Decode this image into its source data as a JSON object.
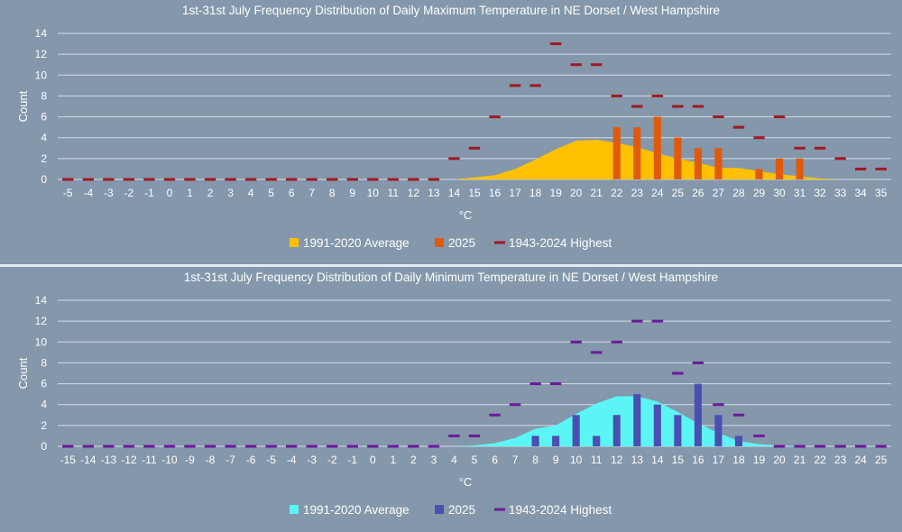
{
  "chart_data": [
    {
      "type": "bar",
      "title": "1st-31st July  Frequency Distribution of Daily Maximum Temperature in NE Dorset / West Hampshire",
      "xlabel": "°C",
      "ylabel": "Count",
      "ylim": [
        0,
        14
      ],
      "yticks": [
        0,
        2,
        4,
        6,
        8,
        10,
        12,
        14
      ],
      "grid": true,
      "legend_position": "bottom",
      "categories": [
        "-5",
        "-4",
        "-3",
        "-2",
        "-1",
        "0",
        "1",
        "2",
        "3",
        "4",
        "5",
        "6",
        "7",
        "8",
        "9",
        "10",
        "11",
        "12",
        "13",
        "14",
        "15",
        "16",
        "17",
        "18",
        "19",
        "20",
        "21",
        "22",
        "23",
        "24",
        "25",
        "26",
        "27",
        "28",
        "29",
        "30",
        "31",
        "32",
        "33",
        "34",
        "35"
      ],
      "series": [
        {
          "name": "1991-2020 Average",
          "kind": "area",
          "values": [
            0,
            0,
            0,
            0,
            0,
            0,
            0,
            0,
            0,
            0,
            0,
            0,
            0,
            0,
            0,
            0,
            0,
            0,
            0,
            0,
            0.2,
            0.4,
            1,
            1.9,
            2.9,
            3.7,
            3.8,
            3.5,
            3.1,
            2.5,
            2,
            1.6,
            1.1,
            1.1,
            0.8,
            0.5,
            0.3,
            0.1,
            0,
            0,
            0
          ]
        },
        {
          "name": "2025",
          "kind": "bar",
          "values": [
            0,
            0,
            0,
            0,
            0,
            0,
            0,
            0,
            0,
            0,
            0,
            0,
            0,
            0,
            0,
            0,
            0,
            0,
            0,
            0,
            0,
            0,
            0,
            0,
            0,
            0,
            0,
            5,
            5,
            6,
            4,
            3,
            3,
            0,
            1,
            2,
            2,
            0,
            0,
            0,
            0
          ]
        },
        {
          "name": "1943-2024 Highest",
          "kind": "marker",
          "values": [
            0,
            0,
            0,
            0,
            0,
            0,
            0,
            0,
            0,
            0,
            0,
            0,
            0,
            0,
            0,
            0,
            0,
            0,
            0,
            2,
            3,
            6,
            9,
            9,
            13,
            11,
            11,
            8,
            7,
            8,
            7,
            7,
            6,
            5,
            4,
            6,
            3,
            3,
            2,
            1,
            1
          ]
        }
      ],
      "colors": {
        "area": "#ffc000",
        "bar": "#e05a0c",
        "marker": "#9e1a24"
      }
    },
    {
      "type": "bar",
      "title": "1st-31st July  Frequency Distribution of Daily Minimum Temperature in NE Dorset / West Hampshire",
      "xlabel": "°C",
      "ylabel": "Count",
      "ylim": [
        0,
        14
      ],
      "yticks": [
        0,
        2,
        4,
        6,
        8,
        10,
        12,
        14
      ],
      "grid": true,
      "legend_position": "bottom",
      "categories": [
        "-15",
        "-14",
        "-13",
        "-12",
        "-11",
        "-10",
        "-9",
        "-8",
        "-7",
        "-6",
        "-5",
        "-4",
        "-3",
        "-2",
        "-1",
        "0",
        "1",
        "2",
        "3",
        "4",
        "5",
        "6",
        "7",
        "8",
        "9",
        "10",
        "11",
        "12",
        "13",
        "14",
        "15",
        "16",
        "17",
        "18",
        "19",
        "20",
        "21",
        "22",
        "23",
        "24",
        "25"
      ],
      "series": [
        {
          "name": "1991-2020 Average",
          "kind": "area",
          "values": [
            0,
            0,
            0,
            0,
            0,
            0,
            0,
            0,
            0,
            0,
            0,
            0,
            0,
            0,
            0,
            0,
            0,
            0,
            0,
            0,
            0.1,
            0.3,
            0.8,
            1.7,
            2,
            3.1,
            4.1,
            4.8,
            4.8,
            4.3,
            3.3,
            2.2,
            1.3,
            0.5,
            0.2,
            0.1,
            0,
            0,
            0,
            0,
            0
          ]
        },
        {
          "name": "2025",
          "kind": "bar",
          "values": [
            0,
            0,
            0,
            0,
            0,
            0,
            0,
            0,
            0,
            0,
            0,
            0,
            0,
            0,
            0,
            0,
            0,
            0,
            0,
            0,
            0,
            0,
            0,
            1,
            1,
            3,
            1,
            3,
            5,
            4,
            3,
            6,
            3,
            1,
            0,
            0,
            0,
            0,
            0,
            0,
            0
          ]
        },
        {
          "name": "1943-2024 Highest",
          "kind": "marker",
          "values": [
            0,
            0,
            0,
            0,
            0,
            0,
            0,
            0,
            0,
            0,
            0,
            0,
            0,
            0,
            0,
            0,
            0,
            0,
            0,
            1,
            1,
            3,
            4,
            6,
            6,
            10,
            9,
            10,
            12,
            12,
            7,
            8,
            4,
            3,
            1,
            0,
            0,
            0,
            0,
            0,
            0
          ]
        }
      ],
      "colors": {
        "area": "#5cf5f5",
        "bar": "#4b4fb3",
        "marker": "#6a1b9a"
      }
    }
  ]
}
